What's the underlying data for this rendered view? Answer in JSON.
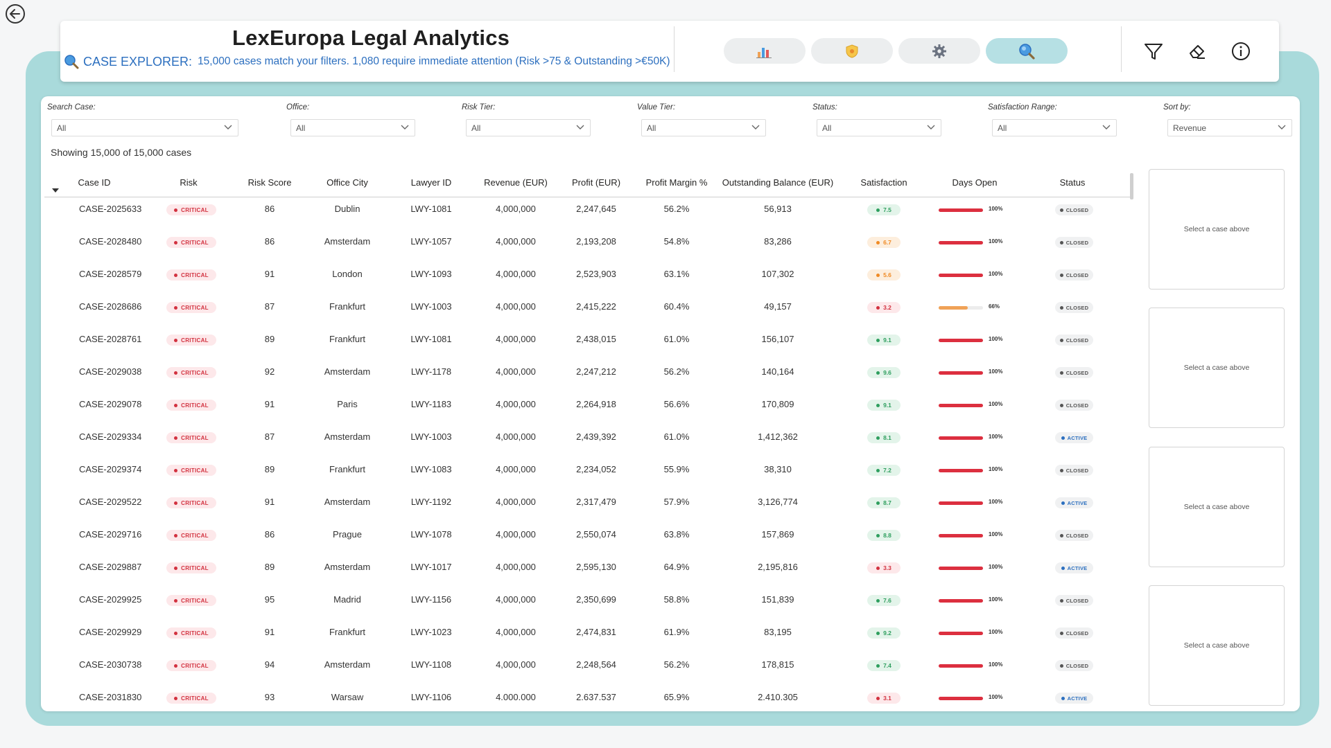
{
  "header": {
    "title": "LexEuropa Legal Analytics",
    "subtitle_label": "CASE EXPLORER:",
    "subtitle_text": "15,000 cases match your filters. 1,080 require immediate attention (Risk >75 & Outstanding >€50K)",
    "nav_buttons": [
      {
        "icon": "bar-chart-icon",
        "active": false
      },
      {
        "icon": "shield-icon",
        "active": false
      },
      {
        "icon": "gear-icon",
        "active": false
      },
      {
        "icon": "search-icon",
        "active": true
      }
    ],
    "tools": [
      "filter-icon",
      "eraser-icon",
      "info-icon"
    ]
  },
  "filters": [
    {
      "label": "Search Case:",
      "value": "All"
    },
    {
      "label": "Office:",
      "value": "All"
    },
    {
      "label": "Risk Tier:",
      "value": "All"
    },
    {
      "label": "Value Tier:",
      "value": "All"
    },
    {
      "label": "Status:",
      "value": "All"
    },
    {
      "label": "Satisfaction Range:",
      "value": "All"
    },
    {
      "label": "Sort by:",
      "value": "Revenue"
    }
  ],
  "showing_text": "Showing 15,000 of 15,000 cases",
  "columns": [
    "Case ID",
    "Risk",
    "Risk Score",
    "Office City",
    "Lawyer ID",
    "Revenue (EUR)",
    "Profit (EUR)",
    "Profit Margin %",
    "Outstanding Balance (EUR)",
    "Satisfaction",
    "Days Open",
    "Status"
  ],
  "colors": {
    "critical": "#d2313f",
    "sat_green": "#2e9e5e",
    "sat_orange": "#f08a24",
    "sat_red": "#d2313f",
    "bar_red": "#dc2f3f",
    "bar_orange": "#f0a257",
    "status_closed": "#555555",
    "status_active": "#2c6fbf",
    "teal_frame": "#a9dadb"
  },
  "rows": [
    {
      "case_id": "CASE-2025633",
      "risk": "CRITICAL",
      "risk_score": "86",
      "office": "Dublin",
      "lawyer": "LWY-1081",
      "revenue": "4,000,000",
      "profit": "2,247,645",
      "margin": "56.2%",
      "outstanding": "56,913",
      "satisfaction": "7.5",
      "sat_level": "green",
      "days_pct": 100,
      "days_label": "100%",
      "status": "CLOSED"
    },
    {
      "case_id": "CASE-2028480",
      "risk": "CRITICAL",
      "risk_score": "86",
      "office": "Amsterdam",
      "lawyer": "LWY-1057",
      "revenue": "4,000,000",
      "profit": "2,193,208",
      "margin": "54.8%",
      "outstanding": "83,286",
      "satisfaction": "6.7",
      "sat_level": "orange",
      "days_pct": 100,
      "days_label": "100%",
      "status": "CLOSED"
    },
    {
      "case_id": "CASE-2028579",
      "risk": "CRITICAL",
      "risk_score": "91",
      "office": "London",
      "lawyer": "LWY-1093",
      "revenue": "4,000,000",
      "profit": "2,523,903",
      "margin": "63.1%",
      "outstanding": "107,302",
      "satisfaction": "5.6",
      "sat_level": "orange",
      "days_pct": 100,
      "days_label": "100%",
      "status": "CLOSED"
    },
    {
      "case_id": "CASE-2028686",
      "risk": "CRITICAL",
      "risk_score": "87",
      "office": "Frankfurt",
      "lawyer": "LWY-1003",
      "revenue": "4,000,000",
      "profit": "2,415,222",
      "margin": "60.4%",
      "outstanding": "49,157",
      "satisfaction": "3.2",
      "sat_level": "red",
      "days_pct": 66,
      "days_label": "66%",
      "status": "CLOSED"
    },
    {
      "case_id": "CASE-2028761",
      "risk": "CRITICAL",
      "risk_score": "89",
      "office": "Frankfurt",
      "lawyer": "LWY-1081",
      "revenue": "4,000,000",
      "profit": "2,438,015",
      "margin": "61.0%",
      "outstanding": "156,107",
      "satisfaction": "9.1",
      "sat_level": "green",
      "days_pct": 100,
      "days_label": "100%",
      "status": "CLOSED"
    },
    {
      "case_id": "CASE-2029038",
      "risk": "CRITICAL",
      "risk_score": "92",
      "office": "Amsterdam",
      "lawyer": "LWY-1178",
      "revenue": "4,000,000",
      "profit": "2,247,212",
      "margin": "56.2%",
      "outstanding": "140,164",
      "satisfaction": "9.6",
      "sat_level": "green",
      "days_pct": 100,
      "days_label": "100%",
      "status": "CLOSED"
    },
    {
      "case_id": "CASE-2029078",
      "risk": "CRITICAL",
      "risk_score": "91",
      "office": "Paris",
      "lawyer": "LWY-1183",
      "revenue": "4,000,000",
      "profit": "2,264,918",
      "margin": "56.6%",
      "outstanding": "170,809",
      "satisfaction": "9.1",
      "sat_level": "green",
      "days_pct": 100,
      "days_label": "100%",
      "status": "CLOSED"
    },
    {
      "case_id": "CASE-2029334",
      "risk": "CRITICAL",
      "risk_score": "87",
      "office": "Amsterdam",
      "lawyer": "LWY-1003",
      "revenue": "4,000,000",
      "profit": "2,439,392",
      "margin": "61.0%",
      "outstanding": "1,412,362",
      "satisfaction": "8.1",
      "sat_level": "green",
      "days_pct": 100,
      "days_label": "100%",
      "status": "ACTIVE"
    },
    {
      "case_id": "CASE-2029374",
      "risk": "CRITICAL",
      "risk_score": "89",
      "office": "Frankfurt",
      "lawyer": "LWY-1083",
      "revenue": "4,000,000",
      "profit": "2,234,052",
      "margin": "55.9%",
      "outstanding": "38,310",
      "satisfaction": "7.2",
      "sat_level": "green",
      "days_pct": 100,
      "days_label": "100%",
      "status": "CLOSED"
    },
    {
      "case_id": "CASE-2029522",
      "risk": "CRITICAL",
      "risk_score": "91",
      "office": "Amsterdam",
      "lawyer": "LWY-1192",
      "revenue": "4,000,000",
      "profit": "2,317,479",
      "margin": "57.9%",
      "outstanding": "3,126,774",
      "satisfaction": "8.7",
      "sat_level": "green",
      "days_pct": 100,
      "days_label": "100%",
      "status": "ACTIVE"
    },
    {
      "case_id": "CASE-2029716",
      "risk": "CRITICAL",
      "risk_score": "86",
      "office": "Prague",
      "lawyer": "LWY-1078",
      "revenue": "4,000,000",
      "profit": "2,550,074",
      "margin": "63.8%",
      "outstanding": "157,869",
      "satisfaction": "8.8",
      "sat_level": "green",
      "days_pct": 100,
      "days_label": "100%",
      "status": "CLOSED"
    },
    {
      "case_id": "CASE-2029887",
      "risk": "CRITICAL",
      "risk_score": "89",
      "office": "Amsterdam",
      "lawyer": "LWY-1017",
      "revenue": "4,000,000",
      "profit": "2,595,130",
      "margin": "64.9%",
      "outstanding": "2,195,816",
      "satisfaction": "3.3",
      "sat_level": "red",
      "days_pct": 100,
      "days_label": "100%",
      "status": "ACTIVE"
    },
    {
      "case_id": "CASE-2029925",
      "risk": "CRITICAL",
      "risk_score": "95",
      "office": "Madrid",
      "lawyer": "LWY-1156",
      "revenue": "4,000,000",
      "profit": "2,350,699",
      "margin": "58.8%",
      "outstanding": "151,839",
      "satisfaction": "7.6",
      "sat_level": "green",
      "days_pct": 100,
      "days_label": "100%",
      "status": "CLOSED"
    },
    {
      "case_id": "CASE-2029929",
      "risk": "CRITICAL",
      "risk_score": "91",
      "office": "Frankfurt",
      "lawyer": "LWY-1023",
      "revenue": "4,000,000",
      "profit": "2,474,831",
      "margin": "61.9%",
      "outstanding": "83,195",
      "satisfaction": "9.2",
      "sat_level": "green",
      "days_pct": 100,
      "days_label": "100%",
      "status": "CLOSED"
    },
    {
      "case_id": "CASE-2030738",
      "risk": "CRITICAL",
      "risk_score": "94",
      "office": "Amsterdam",
      "lawyer": "LWY-1108",
      "revenue": "4,000,000",
      "profit": "2,248,564",
      "margin": "56.2%",
      "outstanding": "178,815",
      "satisfaction": "7.4",
      "sat_level": "green",
      "days_pct": 100,
      "days_label": "100%",
      "status": "CLOSED"
    },
    {
      "case_id": "CASE-2031830",
      "risk": "CRITICAL",
      "risk_score": "93",
      "office": "Warsaw",
      "lawyer": "LWY-1106",
      "revenue": "4.000.000",
      "profit": "2.637.537",
      "margin": "65.9%",
      "outstanding": "2.410.305",
      "satisfaction": "3.1",
      "sat_level": "red",
      "days_pct": 100,
      "days_label": "100%",
      "status": "ACTIVE"
    }
  ],
  "detail_panels": [
    {
      "text": "Select a case above"
    },
    {
      "text": "Select a case above"
    },
    {
      "text": "Select a case above"
    },
    {
      "text": "Select a case above"
    }
  ]
}
